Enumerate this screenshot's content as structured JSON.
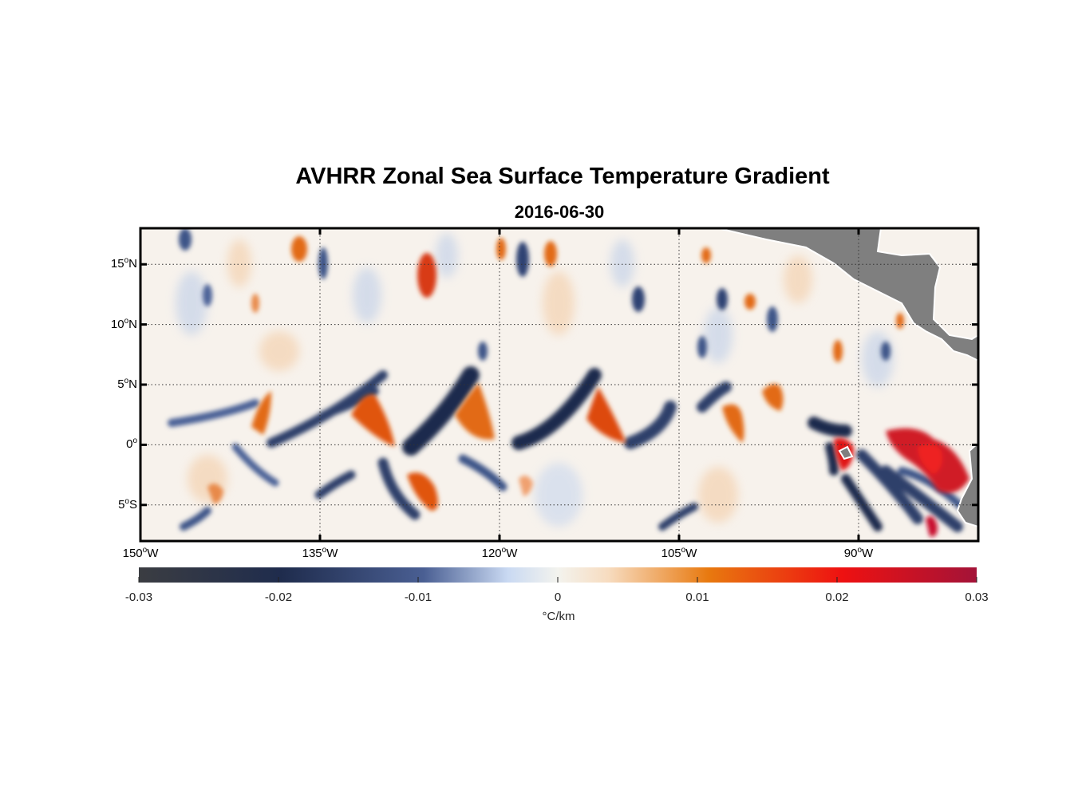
{
  "title": "AVHRR Zonal Sea Surface Temperature Gradient",
  "subtitle": "2016-06-30",
  "map": {
    "lon_range": [
      -150,
      -80
    ],
    "lat_range": [
      -8,
      18
    ],
    "y_ticks": [
      {
        "lat": 15,
        "deg": "15",
        "hemi": "N"
      },
      {
        "lat": 10,
        "deg": "10",
        "hemi": "N"
      },
      {
        "lat": 5,
        "deg": "5",
        "hemi": "N"
      },
      {
        "lat": 0,
        "deg": "0",
        "hemi": ""
      },
      {
        "lat": -5,
        "deg": "5",
        "hemi": "S"
      }
    ],
    "x_ticks": [
      {
        "lon": -150,
        "deg": "150",
        "hemi": "W"
      },
      {
        "lon": -135,
        "deg": "135",
        "hemi": "W"
      },
      {
        "lon": -120,
        "deg": "120",
        "hemi": "W"
      },
      {
        "lon": -105,
        "deg": "105",
        "hemi": "W"
      },
      {
        "lon": -90,
        "deg": "90",
        "hemi": "W"
      }
    ],
    "colors": {
      "land": "#7f7f7f",
      "negative": "#22365e",
      "positive": "#e05a10",
      "strong_positive": "#c8102e"
    }
  },
  "colorbar": {
    "ticks": [
      "-0.03",
      "-0.02",
      "-0.01",
      "0",
      "0.01",
      "0.02",
      "0.03"
    ],
    "range": [
      -0.03,
      0.03
    ],
    "unit": "°C/km"
  }
}
